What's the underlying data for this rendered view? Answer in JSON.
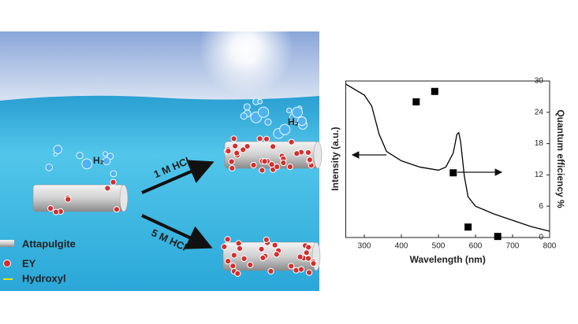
{
  "illustration": {
    "h2_labels": [
      "H₂",
      "H₂"
    ],
    "arrow_labels": [
      "1 M HCl",
      "5 M HCl"
    ],
    "legend": [
      "Attapulgite",
      "EY",
      "Hydroxyl"
    ]
  },
  "chart_data": {
    "type": "line",
    "x_label": "Wavelength (nm)",
    "y_label": "Intensity (a.u.)",
    "y2_label": "Quantum efficiency %",
    "xlim": [
      250,
      800
    ],
    "xticks": [
      300,
      400,
      500,
      600,
      700,
      800
    ],
    "ylim": [
      0,
      1
    ],
    "y2lim": [
      0,
      30
    ],
    "y2ticks": [
      0,
      6,
      12,
      18,
      24,
      30
    ],
    "series": [
      {
        "type": "line",
        "color": "#000000",
        "x": [
          250,
          300,
          320,
          340,
          360,
          400,
          450,
          500,
          520,
          540,
          550,
          555,
          560,
          570,
          580,
          600,
          650,
          700,
          750,
          800
        ],
        "values": [
          0.98,
          0.91,
          0.84,
          0.66,
          0.55,
          0.49,
          0.45,
          0.43,
          0.45,
          0.54,
          0.66,
          0.67,
          0.61,
          0.39,
          0.26,
          0.2,
          0.15,
          0.11,
          0.07,
          0.04
        ]
      },
      {
        "type": "scatter",
        "axis": "y2",
        "color": "#000000",
        "x": [
          440,
          490,
          540,
          580,
          660
        ],
        "values": [
          26,
          28,
          12.4,
          2,
          0.2
        ]
      }
    ]
  }
}
